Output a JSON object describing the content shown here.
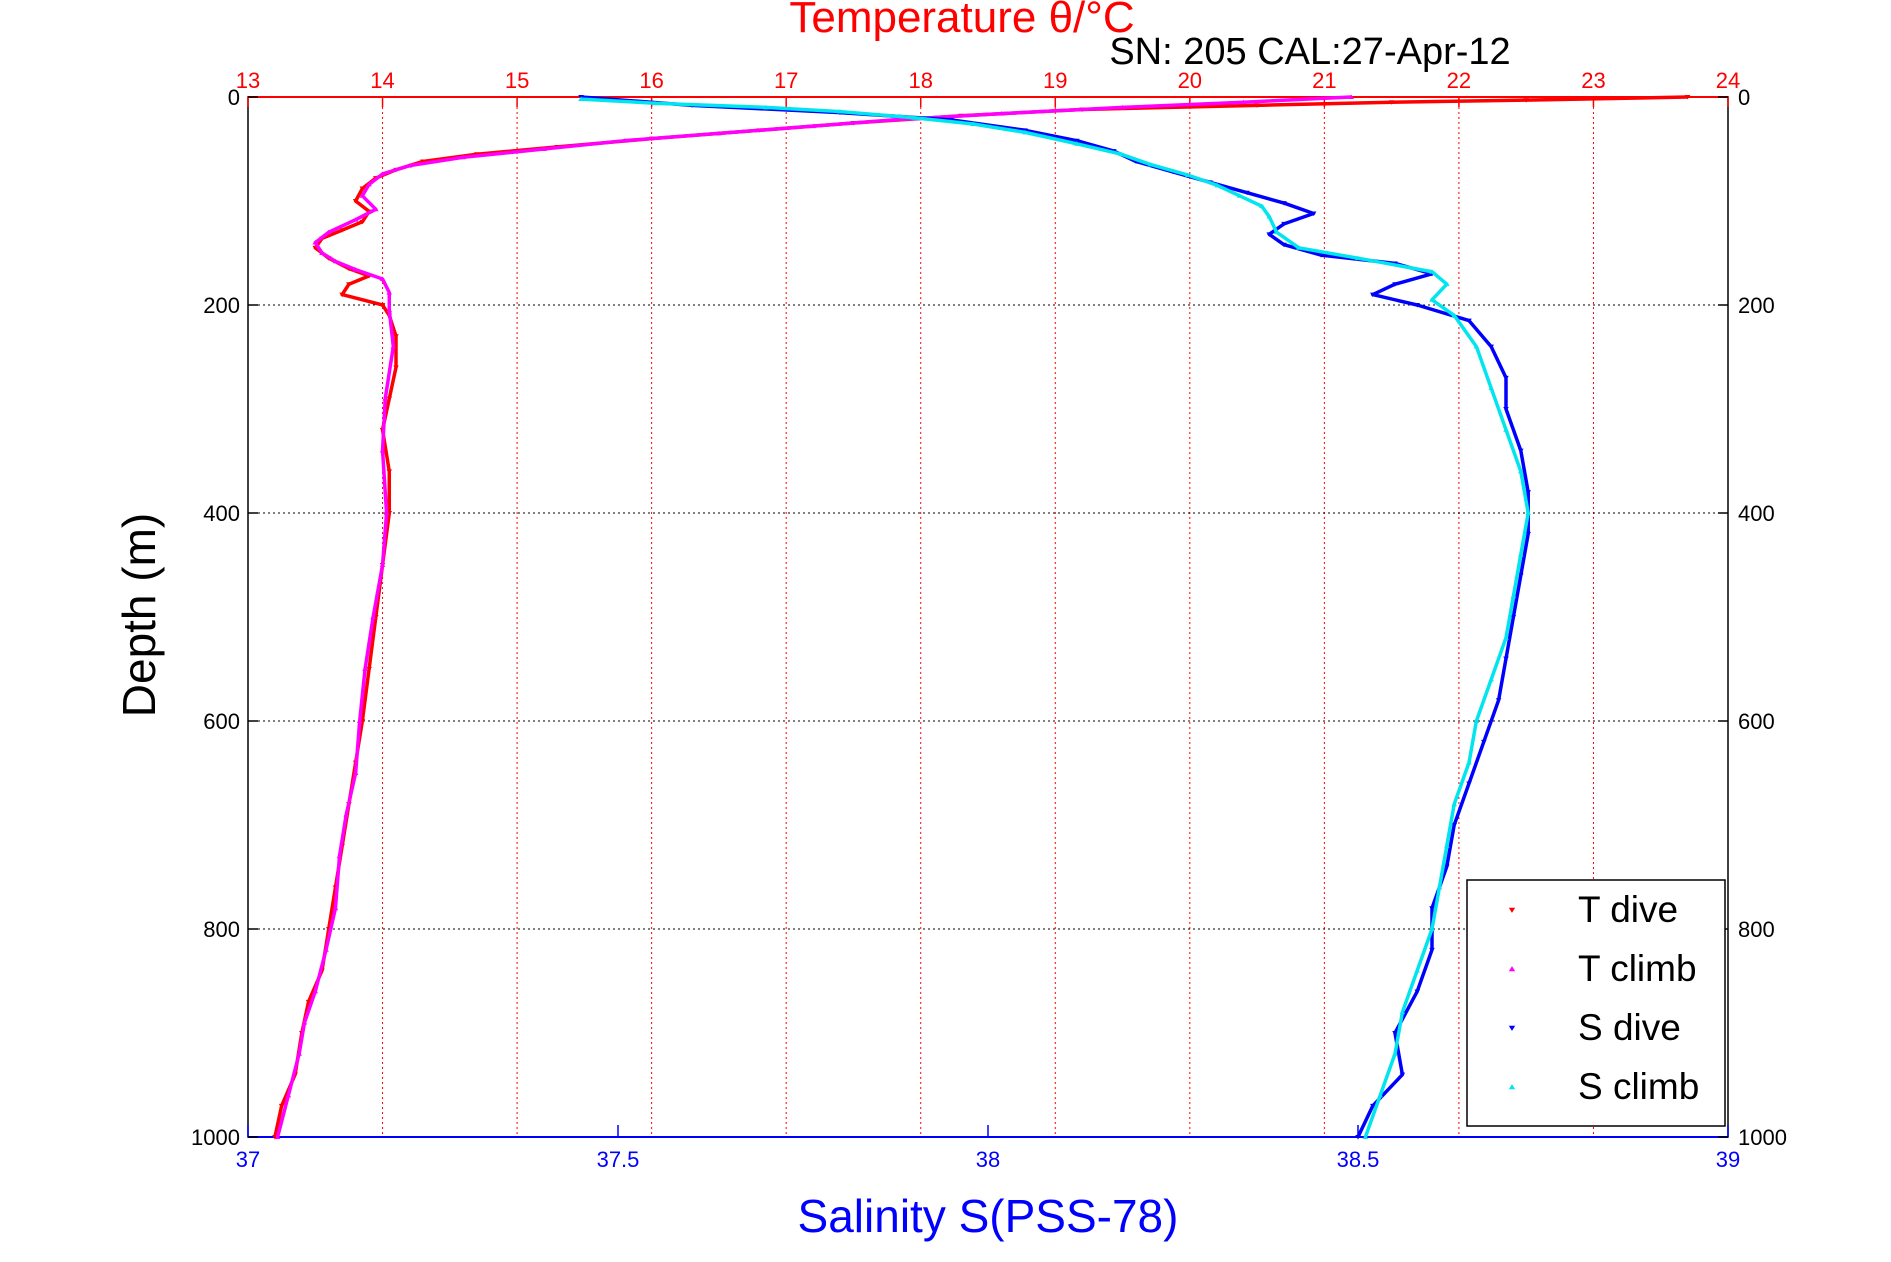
{
  "chart_data": {
    "type": "scatter",
    "title": "Temperature θ/°C",
    "subtitle": "SN: 205  CAL:27-Apr-12",
    "xlabel": "Salinity S(PSS-78)",
    "ylabel": "Depth (m)",
    "x_top": {
      "label": "Temperature θ/°C",
      "range": [
        13,
        24
      ],
      "ticks": [
        "13",
        "14",
        "15",
        "16",
        "17",
        "18",
        "19",
        "20",
        "21",
        "22",
        "23",
        "24"
      ],
      "color": "#ff0000"
    },
    "x_bottom": {
      "label": "Salinity S(PSS-78)",
      "range": [
        37,
        39
      ],
      "ticks": [
        "37",
        "37.5",
        "38",
        "38.5",
        "39"
      ],
      "color": "#0000ff"
    },
    "y": {
      "range": [
        0,
        1000
      ],
      "inverted": true,
      "ticks": [
        "0",
        "200",
        "400",
        "600",
        "800",
        "1000"
      ]
    },
    "grid": "dotted",
    "legend_position": "bottom-right",
    "series": [
      {
        "name": "T dive",
        "axis": "temperature",
        "color": "#ff0000",
        "marker": "triangle-down",
        "points": [
          [
            23.7,
            0
          ],
          [
            22.5,
            3
          ],
          [
            21.5,
            5
          ],
          [
            20.5,
            8
          ],
          [
            19.2,
            12
          ],
          [
            18.3,
            18
          ],
          [
            17.5,
            25
          ],
          [
            16.8,
            32
          ],
          [
            16.0,
            40
          ],
          [
            15.3,
            48
          ],
          [
            14.7,
            55
          ],
          [
            14.3,
            62
          ],
          [
            14.1,
            70
          ],
          [
            13.95,
            78
          ],
          [
            13.85,
            88
          ],
          [
            13.8,
            100
          ],
          [
            13.9,
            110
          ],
          [
            13.85,
            120
          ],
          [
            13.7,
            128
          ],
          [
            13.55,
            136
          ],
          [
            13.5,
            145
          ],
          [
            13.6,
            155
          ],
          [
            13.75,
            165
          ],
          [
            13.9,
            172
          ],
          [
            13.75,
            180
          ],
          [
            13.7,
            190
          ],
          [
            14.0,
            200
          ],
          [
            14.05,
            210
          ],
          [
            14.1,
            230
          ],
          [
            14.1,
            260
          ],
          [
            14.05,
            290
          ],
          [
            14.0,
            320
          ],
          [
            14.05,
            360
          ],
          [
            14.05,
            400
          ],
          [
            14.0,
            450
          ],
          [
            13.95,
            500
          ],
          [
            13.9,
            550
          ],
          [
            13.85,
            600
          ],
          [
            13.8,
            640
          ],
          [
            13.75,
            680
          ],
          [
            13.7,
            720
          ],
          [
            13.65,
            760
          ],
          [
            13.6,
            800
          ],
          [
            13.55,
            840
          ],
          [
            13.45,
            870
          ],
          [
            13.4,
            900
          ],
          [
            13.35,
            940
          ],
          [
            13.25,
            970
          ],
          [
            13.2,
            1000
          ]
        ]
      },
      {
        "name": "T climb",
        "axis": "temperature",
        "color": "#ff00ff",
        "marker": "triangle-up",
        "points": [
          [
            21.2,
            0
          ],
          [
            20.4,
            5
          ],
          [
            19.5,
            10
          ],
          [
            18.6,
            16
          ],
          [
            17.8,
            22
          ],
          [
            17.2,
            28
          ],
          [
            16.5,
            35
          ],
          [
            15.8,
            42
          ],
          [
            15.2,
            50
          ],
          [
            14.6,
            58
          ],
          [
            14.2,
            66
          ],
          [
            14.0,
            74
          ],
          [
            13.9,
            84
          ],
          [
            13.85,
            95
          ],
          [
            13.95,
            108
          ],
          [
            13.8,
            118
          ],
          [
            13.6,
            130
          ],
          [
            13.5,
            140
          ],
          [
            13.55,
            150
          ],
          [
            13.65,
            158
          ],
          [
            13.8,
            166
          ],
          [
            14.0,
            175
          ],
          [
            14.05,
            188
          ],
          [
            14.05,
            205
          ],
          [
            14.08,
            240
          ],
          [
            14.02,
            290
          ],
          [
            14.0,
            340
          ],
          [
            14.03,
            400
          ],
          [
            14.0,
            450
          ],
          [
            13.93,
            500
          ],
          [
            13.87,
            550
          ],
          [
            13.83,
            600
          ],
          [
            13.8,
            650
          ],
          [
            13.73,
            690
          ],
          [
            13.68,
            730
          ],
          [
            13.65,
            780
          ],
          [
            13.58,
            820
          ],
          [
            13.5,
            860
          ],
          [
            13.42,
            890
          ],
          [
            13.38,
            920
          ],
          [
            13.3,
            960
          ],
          [
            13.22,
            1000
          ]
        ]
      },
      {
        "name": "S dive",
        "axis": "salinity",
        "color": "#0000ff",
        "marker": "triangle-down",
        "points": [
          [
            37.45,
            0
          ],
          [
            37.6,
            8
          ],
          [
            37.8,
            15
          ],
          [
            37.95,
            22
          ],
          [
            38.05,
            32
          ],
          [
            38.12,
            42
          ],
          [
            38.17,
            52
          ],
          [
            38.2,
            62
          ],
          [
            38.25,
            72
          ],
          [
            38.3,
            82
          ],
          [
            38.35,
            92
          ],
          [
            38.4,
            102
          ],
          [
            38.44,
            112
          ],
          [
            38.4,
            122
          ],
          [
            38.38,
            132
          ],
          [
            38.4,
            142
          ],
          [
            38.45,
            152
          ],
          [
            38.55,
            160
          ],
          [
            38.6,
            170
          ],
          [
            38.55,
            180
          ],
          [
            38.52,
            190
          ],
          [
            38.58,
            200
          ],
          [
            38.65,
            215
          ],
          [
            38.68,
            240
          ],
          [
            38.7,
            270
          ],
          [
            38.7,
            300
          ],
          [
            38.72,
            340
          ],
          [
            38.73,
            380
          ],
          [
            38.73,
            420
          ],
          [
            38.72,
            460
          ],
          [
            38.71,
            500
          ],
          [
            38.7,
            540
          ],
          [
            38.69,
            580
          ],
          [
            38.67,
            620
          ],
          [
            38.65,
            660
          ],
          [
            38.63,
            700
          ],
          [
            38.62,
            740
          ],
          [
            38.6,
            780
          ],
          [
            38.6,
            820
          ],
          [
            38.58,
            860
          ],
          [
            38.55,
            900
          ],
          [
            38.56,
            940
          ],
          [
            38.52,
            970
          ],
          [
            38.5,
            1000
          ]
        ]
      },
      {
        "name": "S climb",
        "axis": "salinity",
        "color": "#00e5ee",
        "marker": "triangle-up",
        "points": [
          [
            37.45,
            2
          ],
          [
            37.55,
            6
          ],
          [
            37.7,
            10
          ],
          [
            37.8,
            14
          ],
          [
            37.9,
            20
          ],
          [
            37.98,
            26
          ],
          [
            38.05,
            34
          ],
          [
            38.12,
            45
          ],
          [
            38.18,
            55
          ],
          [
            38.22,
            65
          ],
          [
            38.27,
            75
          ],
          [
            38.31,
            85
          ],
          [
            38.34,
            95
          ],
          [
            38.37,
            105
          ],
          [
            38.38,
            115
          ],
          [
            38.39,
            130
          ],
          [
            38.42,
            145
          ],
          [
            38.5,
            155
          ],
          [
            38.6,
            168
          ],
          [
            38.62,
            180
          ],
          [
            38.6,
            195
          ],
          [
            38.63,
            210
          ],
          [
            38.66,
            240
          ],
          [
            38.68,
            280
          ],
          [
            38.7,
            320
          ],
          [
            38.72,
            360
          ],
          [
            38.73,
            400
          ],
          [
            38.72,
            440
          ],
          [
            38.71,
            480
          ],
          [
            38.7,
            520
          ],
          [
            38.68,
            560
          ],
          [
            38.66,
            600
          ],
          [
            38.65,
            640
          ],
          [
            38.63,
            680
          ],
          [
            38.62,
            720
          ],
          [
            38.61,
            760
          ],
          [
            38.6,
            800
          ],
          [
            38.58,
            840
          ],
          [
            38.56,
            880
          ],
          [
            38.55,
            920
          ],
          [
            38.53,
            960
          ],
          [
            38.51,
            1000
          ]
        ]
      }
    ]
  }
}
